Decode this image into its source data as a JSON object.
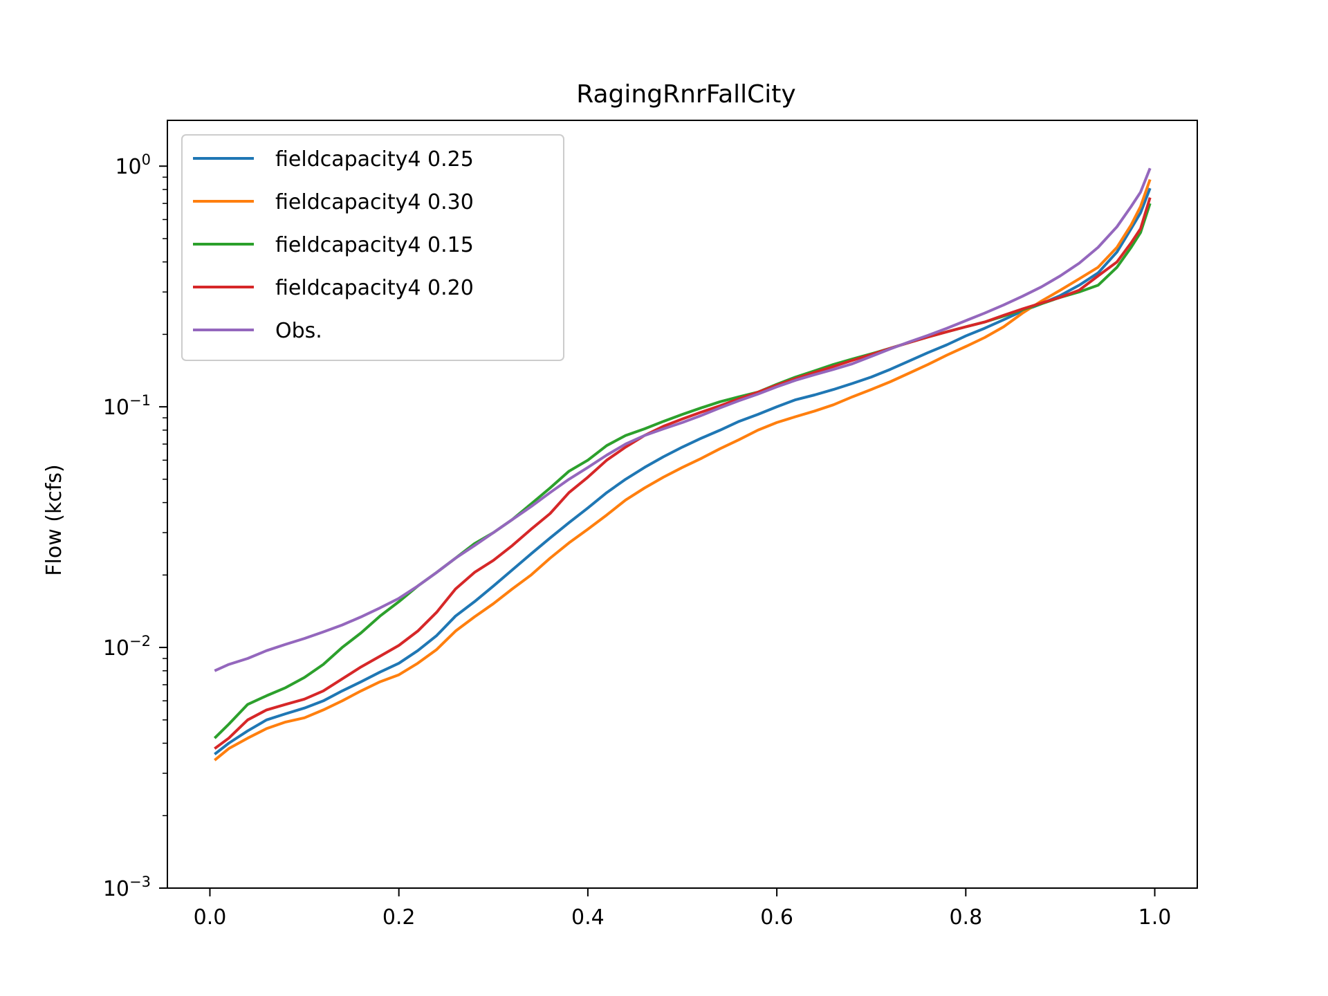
{
  "chart_data": {
    "type": "line",
    "title": "RagingRnrFallCity",
    "xlabel": "",
    "ylabel": "Flow (kcfs)",
    "xlim": [
      -0.045,
      1.045
    ],
    "ylim": [
      0.001,
      1.55
    ],
    "yscale": "log",
    "grid": false,
    "legend_position": "top-left",
    "x_ticks": [
      {
        "value": 0.0,
        "label": "0.0"
      },
      {
        "value": 0.2,
        "label": "0.2"
      },
      {
        "value": 0.4,
        "label": "0.4"
      },
      {
        "value": 0.6,
        "label": "0.6"
      },
      {
        "value": 0.8,
        "label": "0.8"
      },
      {
        "value": 1.0,
        "label": "1.0"
      }
    ],
    "y_ticks": [
      {
        "value": 0.001,
        "base": "10",
        "exp": "−3"
      },
      {
        "value": 0.01,
        "base": "10",
        "exp": "−2"
      },
      {
        "value": 0.1,
        "base": "10",
        "exp": "−1"
      },
      {
        "value": 1,
        "base": "10",
        "exp": "0"
      }
    ],
    "x": [
      0.005,
      0.02,
      0.04,
      0.06,
      0.08,
      0.1,
      0.12,
      0.14,
      0.16,
      0.18,
      0.2,
      0.22,
      0.24,
      0.26,
      0.28,
      0.3,
      0.32,
      0.34,
      0.36,
      0.38,
      0.4,
      0.42,
      0.44,
      0.46,
      0.48,
      0.5,
      0.52,
      0.54,
      0.56,
      0.58,
      0.6,
      0.62,
      0.64,
      0.66,
      0.68,
      0.7,
      0.72,
      0.74,
      0.76,
      0.78,
      0.8,
      0.82,
      0.84,
      0.86,
      0.88,
      0.9,
      0.92,
      0.94,
      0.96,
      0.975,
      0.985,
      0.995
    ],
    "series": [
      {
        "name": "fieldcapacity4 0.25",
        "color": "#1f77b4",
        "values": [
          0.0036,
          0.004,
          0.0045,
          0.005,
          0.0053,
          0.0056,
          0.006,
          0.0066,
          0.0072,
          0.0079,
          0.0086,
          0.0097,
          0.0112,
          0.0135,
          0.0155,
          0.018,
          0.021,
          0.0245,
          0.0285,
          0.033,
          0.038,
          0.044,
          0.05,
          0.056,
          0.062,
          0.068,
          0.074,
          0.08,
          0.087,
          0.093,
          0.1,
          0.107,
          0.112,
          0.118,
          0.125,
          0.133,
          0.143,
          0.155,
          0.168,
          0.181,
          0.197,
          0.212,
          0.23,
          0.25,
          0.268,
          0.29,
          0.32,
          0.36,
          0.44,
          0.55,
          0.64,
          0.81
        ]
      },
      {
        "name": "fieldcapacity4 0.30",
        "color": "#ff7f0e",
        "values": [
          0.0034,
          0.0038,
          0.0042,
          0.0046,
          0.0049,
          0.0051,
          0.0055,
          0.006,
          0.0066,
          0.0072,
          0.0077,
          0.0086,
          0.0098,
          0.0117,
          0.0134,
          0.0152,
          0.0175,
          0.02,
          0.0235,
          0.0272,
          0.031,
          0.0355,
          0.041,
          0.046,
          0.051,
          0.056,
          0.061,
          0.067,
          0.073,
          0.08,
          0.086,
          0.091,
          0.096,
          0.102,
          0.11,
          0.118,
          0.127,
          0.138,
          0.15,
          0.164,
          0.178,
          0.194,
          0.215,
          0.245,
          0.275,
          0.305,
          0.34,
          0.38,
          0.46,
          0.57,
          0.68,
          0.88
        ]
      },
      {
        "name": "fieldcapacity4 0.15",
        "color": "#2ca02c",
        "values": [
          0.0042,
          0.0048,
          0.0058,
          0.0063,
          0.0068,
          0.0075,
          0.0085,
          0.01,
          0.0115,
          0.0135,
          0.0155,
          0.018,
          0.0205,
          0.0235,
          0.027,
          0.03,
          0.034,
          0.0395,
          0.046,
          0.054,
          0.06,
          0.069,
          0.076,
          0.081,
          0.087,
          0.093,
          0.099,
          0.105,
          0.11,
          0.115,
          0.124,
          0.133,
          0.141,
          0.15,
          0.158,
          0.166,
          0.175,
          0.185,
          0.195,
          0.205,
          0.215,
          0.225,
          0.238,
          0.253,
          0.268,
          0.285,
          0.3,
          0.32,
          0.38,
          0.46,
          0.53,
          0.7
        ]
      },
      {
        "name": "fieldcapacity4 0.20",
        "color": "#d62728",
        "values": [
          0.0038,
          0.0042,
          0.005,
          0.0055,
          0.0058,
          0.0061,
          0.0066,
          0.0074,
          0.0083,
          0.0092,
          0.0102,
          0.0117,
          0.014,
          0.0175,
          0.0205,
          0.023,
          0.0265,
          0.031,
          0.036,
          0.044,
          0.051,
          0.06,
          0.068,
          0.076,
          0.083,
          0.089,
          0.095,
          0.101,
          0.108,
          0.115,
          0.123,
          0.131,
          0.139,
          0.147,
          0.156,
          0.165,
          0.175,
          0.185,
          0.195,
          0.205,
          0.215,
          0.225,
          0.24,
          0.255,
          0.27,
          0.285,
          0.305,
          0.35,
          0.4,
          0.48,
          0.55,
          0.74
        ]
      },
      {
        "name": "Obs.",
        "color": "#9467bd",
        "values": [
          0.008,
          0.0085,
          0.009,
          0.0097,
          0.0103,
          0.0109,
          0.0116,
          0.0124,
          0.0134,
          0.0146,
          0.016,
          0.018,
          0.0205,
          0.0235,
          0.0265,
          0.03,
          0.034,
          0.0385,
          0.044,
          0.05,
          0.056,
          0.063,
          0.07,
          0.076,
          0.081,
          0.086,
          0.092,
          0.099,
          0.106,
          0.113,
          0.121,
          0.129,
          0.136,
          0.143,
          0.151,
          0.162,
          0.174,
          0.186,
          0.198,
          0.212,
          0.228,
          0.245,
          0.265,
          0.288,
          0.315,
          0.35,
          0.395,
          0.46,
          0.56,
          0.68,
          0.78,
          0.98
        ]
      }
    ]
  }
}
